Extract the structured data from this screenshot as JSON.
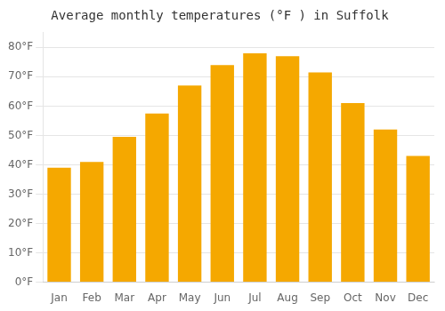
{
  "chart_data": {
    "type": "bar",
    "title": "Average monthly temperatures (°F ) in Suffolk",
    "categories": [
      "Jan",
      "Feb",
      "Mar",
      "Apr",
      "May",
      "Jun",
      "Jul",
      "Aug",
      "Sep",
      "Oct",
      "Nov",
      "Dec"
    ],
    "values": [
      39,
      41,
      49.5,
      57.5,
      67,
      74,
      78,
      77,
      71.5,
      61,
      52,
      43
    ],
    "color": "#F5A800",
    "ylim": [
      0,
      85
    ],
    "yticks": [
      {
        "value": 0,
        "label": "0°F"
      },
      {
        "value": 10,
        "label": "10°F"
      },
      {
        "value": 20,
        "label": "20°F"
      },
      {
        "value": 30,
        "label": "30°F"
      },
      {
        "value": 40,
        "label": "40°F"
      },
      {
        "value": 50,
        "label": "50°F"
      },
      {
        "value": 60,
        "label": "60°F"
      },
      {
        "value": 70,
        "label": "70°F"
      },
      {
        "value": 80,
        "label": "80°F"
      }
    ],
    "grid": true
  }
}
